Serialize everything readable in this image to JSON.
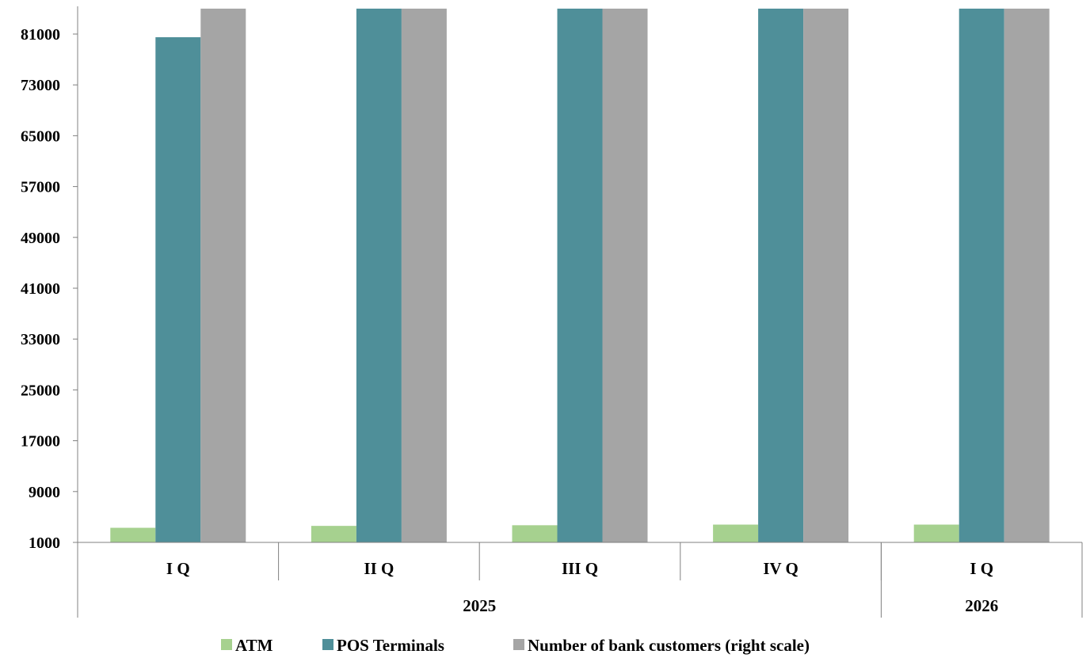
{
  "chart_data": {
    "type": "bar",
    "title": "",
    "xlabel": "",
    "ylabel": "",
    "ylim": [
      1000,
      85000
    ],
    "yticks": [
      1000,
      9000,
      17000,
      25000,
      33000,
      41000,
      49000,
      57000,
      65000,
      73000,
      81000
    ],
    "ytick_labels": [
      "1000",
      "9000",
      "17000",
      "25000",
      "33000",
      "41000",
      "49000",
      "57000",
      "65000",
      "73000",
      "81000"
    ],
    "categories": [
      "I Q",
      "II Q",
      "III Q",
      "IV Q",
      "I Q"
    ],
    "groups": [
      {
        "label": "2025",
        "span": 4
      },
      {
        "label": "2026",
        "span": 1
      }
    ],
    "series": [
      {
        "name": "ATM",
        "color": "#a6d18f",
        "values": [
          3300,
          3600,
          3700,
          3800,
          3800
        ]
      },
      {
        "name": "POS Terminals",
        "color": "#4f8f99",
        "values": [
          80500,
          85000,
          85000,
          85000,
          85000
        ],
        "clipped_at_top": [
          false,
          true,
          true,
          true,
          true
        ]
      },
      {
        "name": "Number of bank customers (right scale)",
        "color": "#a5a5a5",
        "values": [
          85000,
          85000,
          85000,
          85000,
          85000
        ],
        "clipped_at_top": [
          true,
          true,
          true,
          true,
          true
        ]
      }
    ],
    "legend_position": "bottom",
    "grid": false
  }
}
